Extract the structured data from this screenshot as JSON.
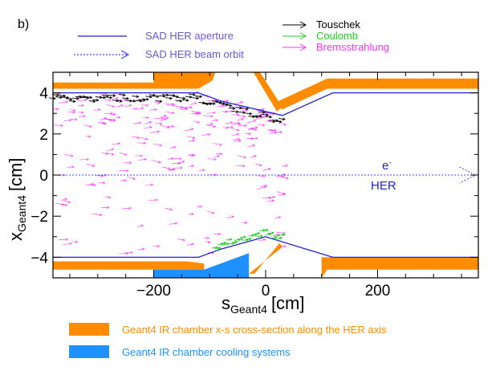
{
  "panel_label": "b)",
  "legend_top_left": [
    {
      "label": "SAD HER aperture",
      "style": "solid",
      "color": "#3a3ae0"
    },
    {
      "label": "SAD HER beam orbit",
      "style": "dotted-arrow",
      "color": "#3a3ae0"
    }
  ],
  "legend_top_right": [
    {
      "label": "Touschek",
      "color": "#000000"
    },
    {
      "label": "Coulomb",
      "color": "#22cc22"
    },
    {
      "label": "Bremsstrahlung",
      "color": "#ff33ff"
    }
  ],
  "legend_bottom": [
    {
      "label": "Geant4 IR chamber x-s cross-section along the HER axis",
      "color": "#ff8c00",
      "text_color": "#ff8c00"
    },
    {
      "label": "Geant4 IR chamber cooling systems",
      "color": "#1e90ff",
      "text_color": "#1e90ff"
    }
  ],
  "annotations": {
    "particle": "e",
    "particle_sup": "-",
    "ring": "HER"
  },
  "colors": {
    "aperture": "#2020d8",
    "orbit": "#4040ff",
    "chamber": "#ff8c00",
    "cooling": "#1e90ff",
    "touschek": "#000000",
    "coulomb": "#22cc22",
    "brems": "#ff33ff"
  },
  "chart_data": {
    "type": "scatter",
    "title": "",
    "xlabel": "s",
    "xlabel_sub": "Geant4",
    "xlabel_unit": "[cm]",
    "ylabel": "x",
    "ylabel_sub": "Geant4",
    "ylabel_unit": "[cm]",
    "xlim": [
      -380,
      380
    ],
    "ylim": [
      -5,
      5
    ],
    "xticks": [
      -200,
      0,
      200
    ],
    "xtick_labels": [
      "−200",
      "0",
      "200"
    ],
    "yticks": [
      -4,
      -2,
      0,
      2,
      4
    ],
    "ytick_labels": [
      "−4",
      "−2",
      "0",
      "2",
      "4"
    ],
    "aperture_upper": [
      [
        -380,
        4.0
      ],
      [
        -120,
        4.0
      ],
      [
        -80,
        3.6
      ],
      [
        30,
        2.9
      ],
      [
        120,
        4.0
      ],
      [
        380,
        4.0
      ]
    ],
    "aperture_lower": [
      [
        -380,
        -4.0
      ],
      [
        -120,
        -4.0
      ],
      [
        -80,
        -3.6
      ],
      [
        0,
        -3.0
      ],
      [
        120,
        -4.0
      ],
      [
        380,
        -4.0
      ]
    ],
    "beam_orbit": {
      "x": [
        -380,
        375
      ],
      "y": [
        0,
        0
      ]
    },
    "chamber_upper": [
      [
        [
          -380,
          4.5
        ],
        [
          -200,
          4.5
        ],
        [
          -200,
          4.2
        ],
        [
          -380,
          4.2
        ]
      ],
      [
        [
          -200,
          5.0
        ],
        [
          -90,
          5.0
        ],
        [
          -95,
          4.6
        ],
        [
          -120,
          4.2
        ],
        [
          -200,
          4.2
        ]
      ],
      [
        [
          -22,
          5.0
        ],
        [
          -10,
          5.0
        ],
        [
          30,
          3.3
        ],
        [
          20,
          3.1
        ]
      ],
      [
        [
          15,
          3.5
        ],
        [
          110,
          4.7
        ],
        [
          380,
          4.7
        ],
        [
          380,
          4.2
        ],
        [
          110,
          4.2
        ],
        [
          30,
          3.2
        ]
      ]
    ],
    "chamber_lower": [
      [
        [
          -380,
          -4.2
        ],
        [
          -140,
          -4.2
        ],
        [
          -110,
          -4.3
        ],
        [
          -110,
          -4.6
        ],
        [
          -380,
          -4.6
        ]
      ],
      [
        [
          100,
          -4.0
        ],
        [
          380,
          -4.0
        ],
        [
          380,
          -4.6
        ],
        [
          110,
          -4.6
        ],
        [
          100,
          -5.0
        ]
      ],
      [
        [
          -30,
          -4.8
        ],
        [
          -20,
          -4.8
        ],
        [
          25,
          -3.3
        ],
        [
          30,
          -3.5
        ]
      ]
    ],
    "cooling": [
      [
        [
          -200,
          -4.6
        ],
        [
          -110,
          -4.6
        ],
        [
          -30,
          -3.8
        ],
        [
          -30,
          -5.0
        ],
        [
          -200,
          -5.0
        ]
      ]
    ],
    "series": [
      {
        "name": "Touschek",
        "color": "#000000",
        "band": "upper",
        "s_range": [
          -380,
          30
        ],
        "count": 70
      },
      {
        "name": "Coulomb",
        "color": "#22cc22",
        "band": "lower",
        "s_range": [
          -90,
          30
        ],
        "count": 25
      },
      {
        "name": "Bremsstrahlung",
        "color": "#ff33ff",
        "band": "spray",
        "s_range": [
          -380,
          30
        ],
        "count": 220
      }
    ]
  }
}
